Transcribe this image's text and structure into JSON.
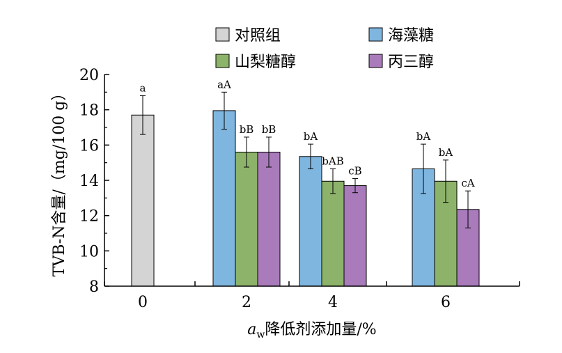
{
  "chart_data": {
    "type": "bar",
    "categories": [
      "0",
      "2",
      "4",
      "6"
    ],
    "xlabel": {
      "italic": "a",
      "subscript": "w",
      "rest": "降低剂添加量/%"
    },
    "ylabel": "TVB-N含量/（mg/100 g）",
    "ylim": [
      8,
      20
    ],
    "yticks": [
      "8",
      "10",
      "12",
      "14",
      "16",
      "18",
      "20"
    ],
    "legend_placement": "top",
    "series": [
      {
        "name": "对照组",
        "color": "#d4d4d4",
        "values": [
          17.7,
          null,
          null,
          null
        ],
        "errors": [
          1.1,
          null,
          null,
          null
        ],
        "labels": [
          "a",
          null,
          null,
          null
        ]
      },
      {
        "name": "海藻糖",
        "color": "#7fb6e0",
        "values": [
          null,
          17.95,
          15.35,
          14.65
        ],
        "errors": [
          null,
          1.05,
          0.7,
          1.4
        ],
        "labels": [
          null,
          "aA",
          "bA",
          "bA"
        ]
      },
      {
        "name": "山梨糖醇",
        "color": "#8db36a",
        "values": [
          null,
          15.6,
          13.95,
          13.95
        ],
        "errors": [
          null,
          0.85,
          0.7,
          1.2
        ],
        "labels": [
          null,
          "bB",
          "bAB",
          "bA"
        ]
      },
      {
        "name": "丙三醇",
        "color": "#a97bbb",
        "values": [
          null,
          15.6,
          13.7,
          12.35
        ],
        "errors": [
          null,
          0.85,
          0.4,
          1.05
        ],
        "labels": [
          null,
          "bB",
          "cB",
          "cA"
        ]
      }
    ]
  }
}
